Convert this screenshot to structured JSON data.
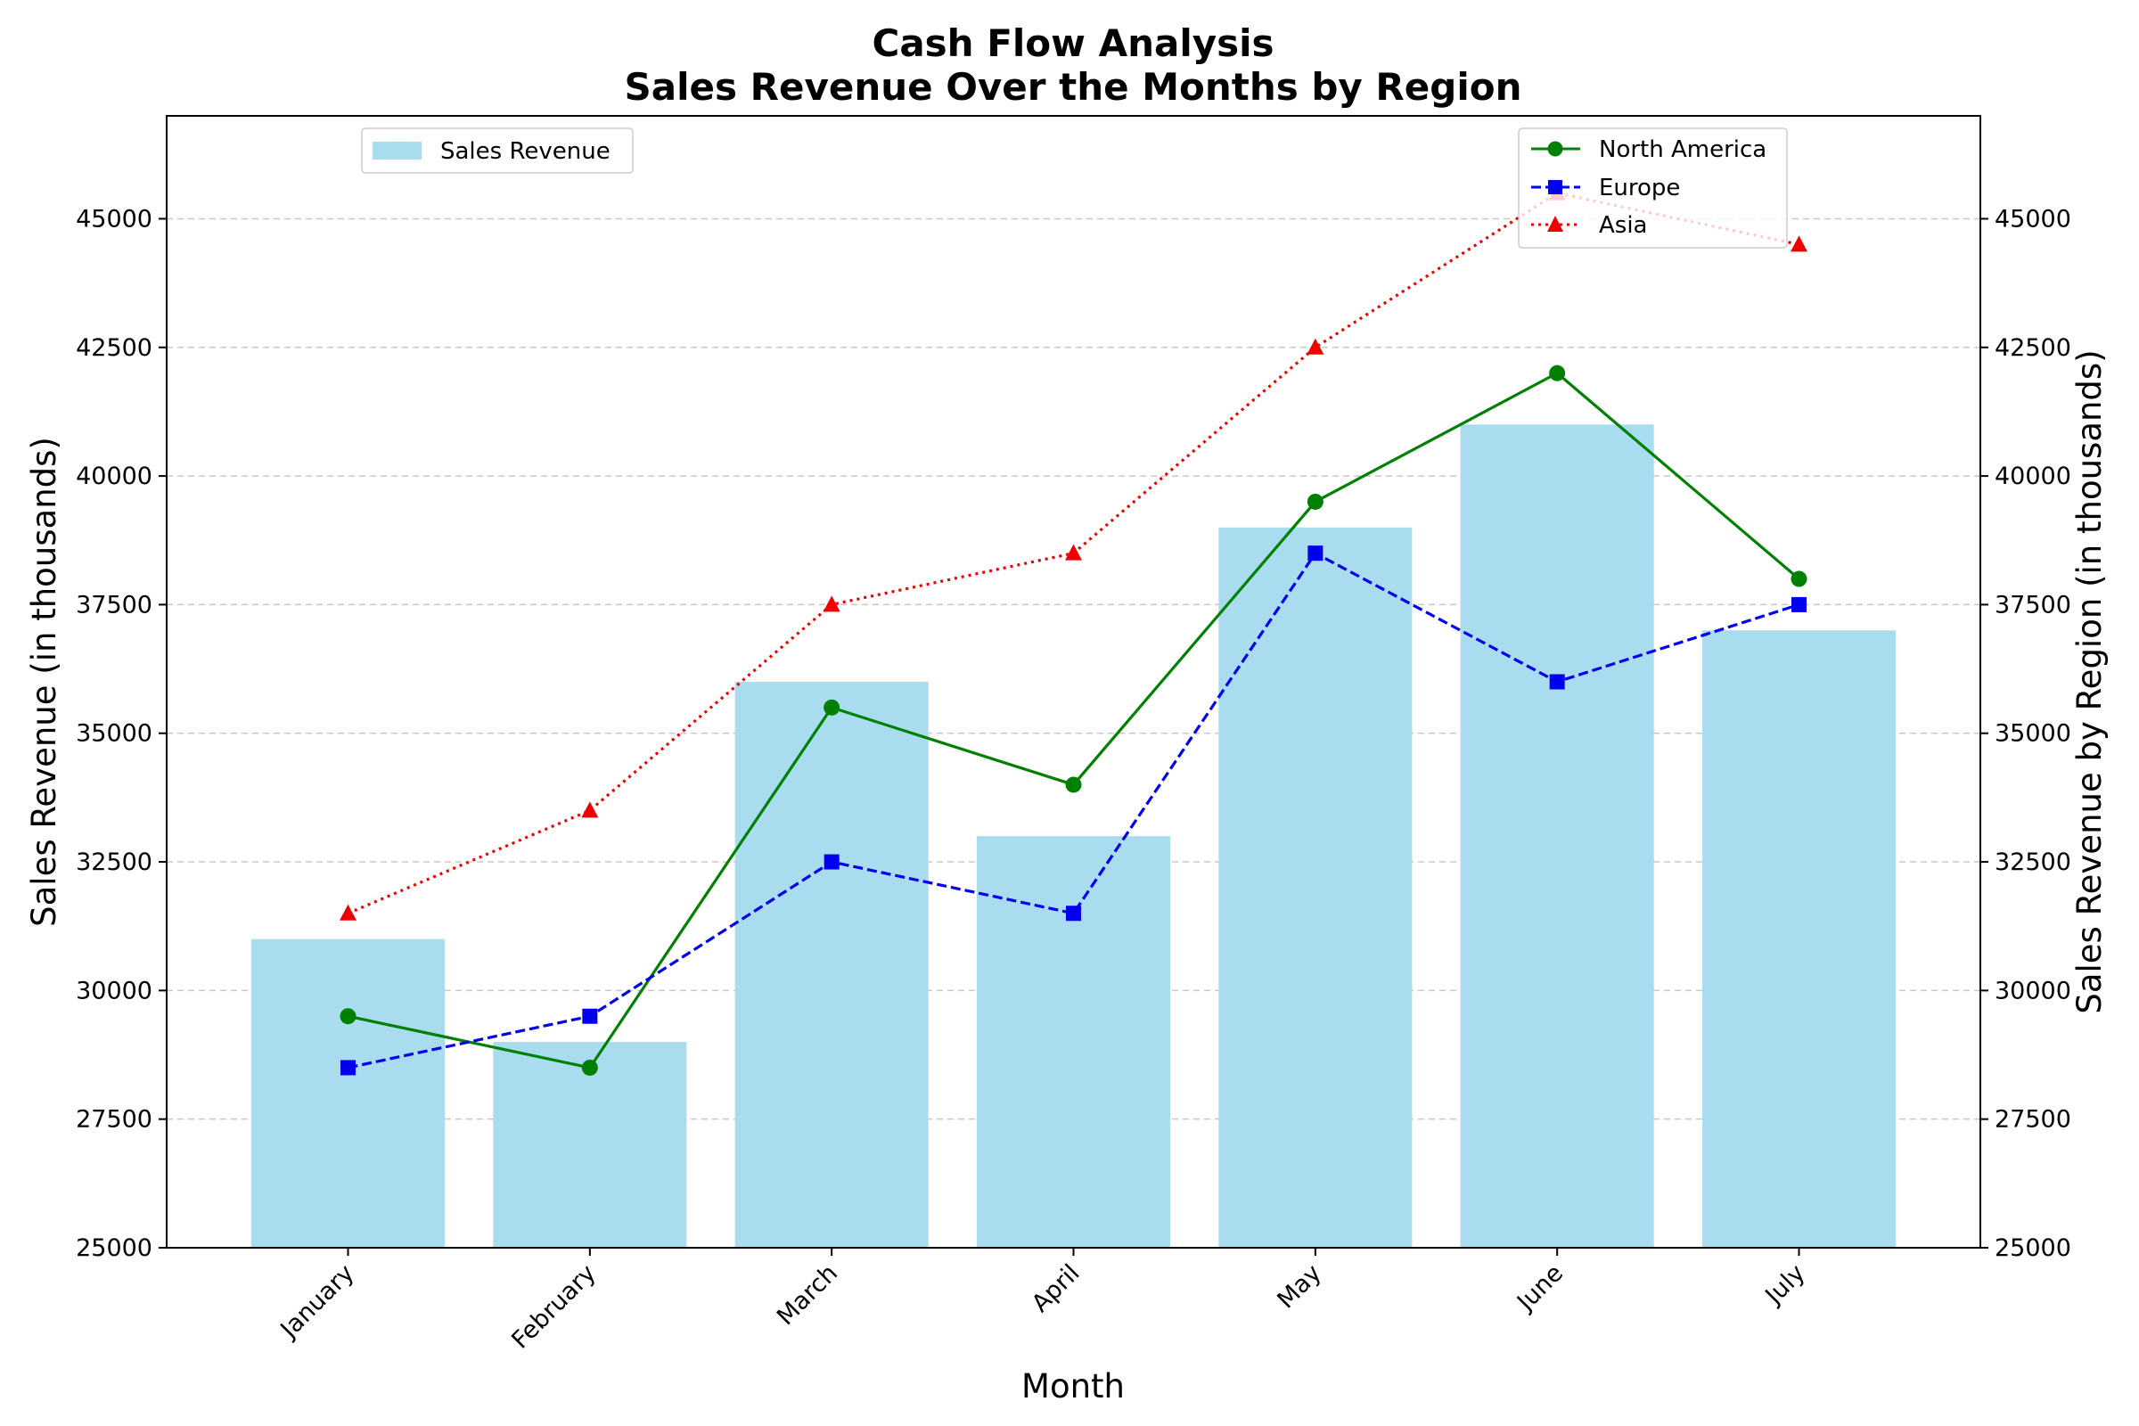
{
  "chart_data": {
    "type": "bar",
    "title": "Cash Flow Analysis",
    "subtitle": "Sales Revenue Over the Months by Region",
    "xlabel": "Month",
    "ylabel": "Sales Revenue (in thousands)",
    "ylabel_right": "Sales Revenue by Region (in thousands)",
    "categories": [
      "January",
      "February",
      "March",
      "April",
      "May",
      "June",
      "July"
    ],
    "ylim": [
      25000,
      47000
    ],
    "yticks": [
      25000,
      27500,
      30000,
      32500,
      35000,
      37500,
      40000,
      42500,
      45000
    ],
    "grid": "horizontal dashed",
    "bars": {
      "name": "Sales Revenue",
      "values": [
        31000,
        29000,
        36000,
        33000,
        39000,
        41000,
        37000
      ],
      "color": "#a8dcee",
      "legend_position": "upper-left"
    },
    "series": [
      {
        "name": "North America",
        "values": [
          29500,
          28500,
          35500,
          34000,
          39500,
          42000,
          38000
        ],
        "color": "#008000",
        "style": "solid",
        "marker": "circle"
      },
      {
        "name": "Europe",
        "values": [
          28500,
          29500,
          32500,
          31500,
          38500,
          36000,
          37500
        ],
        "color": "#0000ee",
        "style": "dashed",
        "marker": "square"
      },
      {
        "name": "Asia",
        "values": [
          31500,
          33500,
          37500,
          38500,
          42500,
          45500,
          44500
        ],
        "color": "#ee0000",
        "style": "dotted",
        "marker": "triangle"
      }
    ],
    "lines_legend_position": "upper-right"
  }
}
